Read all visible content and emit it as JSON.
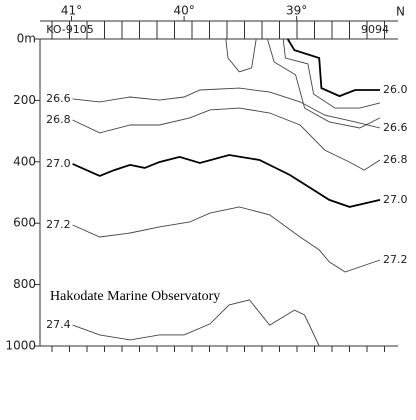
{
  "chart_data": {
    "type": "contour",
    "annotation": "Hakodate Marine Observatory",
    "x_unit": "N",
    "station_labels": [
      "KO-9105",
      "9094"
    ],
    "xlim": [
      41.28,
      38.1
    ],
    "xticks": [
      {
        "value": 41,
        "label": "41°"
      },
      {
        "value": 40,
        "label": "40°"
      },
      {
        "value": 39,
        "label": "39°"
      }
    ],
    "ylim": [
      0,
      1000
    ],
    "yticks": [
      {
        "value": 0,
        "label": "0m"
      },
      200,
      400,
      600,
      800,
      1000
    ],
    "color": "#444",
    "series": [
      {
        "name": "26.0",
        "labels": [
          "right"
        ],
        "bold": true,
        "x": [
          39.08,
          39.02,
          38.8,
          38.78,
          38.62,
          38.48,
          38.26
        ],
        "y": [
          0,
          36,
          62,
          160,
          186,
          166,
          166
        ]
      },
      {
        "x": [
          39.12,
          39.1,
          38.9,
          38.85,
          38.66,
          38.44,
          38.26
        ],
        "y": [
          0,
          62,
          81,
          179,
          225,
          225,
          208
        ]
      },
      {
        "x": [
          39.26,
          39.2,
          39.01,
          38.93,
          38.71,
          38.44,
          38.26
        ],
        "y": [
          0,
          75,
          117,
          225,
          270,
          290,
          257
        ]
      },
      {
        "x": [
          39.63,
          39.61,
          39.51,
          39.4,
          39.36
        ],
        "y": [
          0,
          62,
          107,
          94,
          0
        ]
      },
      {
        "name": "26.6",
        "labels": [
          "left",
          "right"
        ],
        "x": [
          40.99,
          40.75,
          40.48,
          40.22,
          40.0,
          39.86,
          39.51,
          39.24,
          38.97,
          38.75,
          38.48,
          38.26
        ],
        "y": [
          195,
          205,
          189,
          199,
          189,
          166,
          160,
          173,
          205,
          248,
          270,
          290
        ]
      },
      {
        "name": "26.8",
        "labels": [
          "left",
          "right"
        ],
        "x": [
          40.99,
          40.75,
          40.48,
          40.22,
          39.95,
          39.77,
          39.51,
          39.24,
          38.97,
          38.75,
          38.53,
          38.4,
          38.26
        ],
        "y": [
          264,
          306,
          280,
          280,
          257,
          231,
          225,
          241,
          280,
          362,
          401,
          427,
          394
        ]
      },
      {
        "name": "27.0",
        "labels": [
          "left",
          "right"
        ],
        "bold": true,
        "x": [
          40.99,
          40.75,
          40.62,
          40.48,
          40.35,
          40.22,
          40.04,
          39.86,
          39.6,
          39.33,
          39.06,
          38.71,
          38.53,
          38.26
        ],
        "y": [
          407,
          446,
          427,
          410,
          420,
          401,
          384,
          404,
          378,
          394,
          443,
          524,
          547,
          524
        ]
      },
      {
        "name": "27.2",
        "labels": [
          "left",
          "right"
        ],
        "x": [
          40.99,
          40.75,
          40.48,
          40.22,
          39.95,
          39.77,
          39.51,
          39.24,
          38.97,
          38.8,
          38.71,
          38.57,
          38.26
        ],
        "y": [
          606,
          645,
          632,
          612,
          596,
          567,
          547,
          573,
          645,
          687,
          726,
          759,
          720
        ]
      },
      {
        "name": "27.4",
        "labels": [
          "left"
        ],
        "x": [
          40.99,
          40.75,
          40.48,
          40.22,
          40.0,
          39.77,
          39.6,
          39.42,
          39.24,
          39.02,
          38.93,
          38.8
        ],
        "y": [
          932,
          964,
          980,
          964,
          964,
          928,
          866,
          850,
          932,
          883,
          899,
          1000
        ]
      }
    ]
  }
}
